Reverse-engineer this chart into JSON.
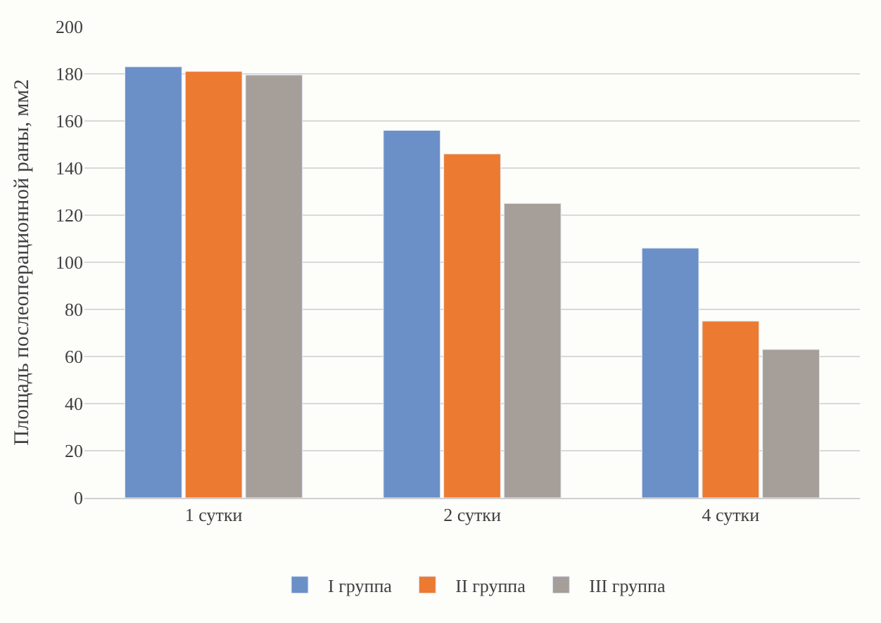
{
  "chart_data": {
    "type": "bar",
    "ylabel": "Площадь послеоперационной раны, мм2",
    "categories": [
      "1 сутки",
      "2 сутки",
      "4 сутки"
    ],
    "series": [
      {
        "name": "I группа",
        "color": "#6b8fc7",
        "values": [
          183,
          156,
          106
        ]
      },
      {
        "name": "II группа",
        "color": "#ec7a31",
        "values": [
          181,
          146,
          75
        ]
      },
      {
        "name": "III группа",
        "color": "#a59e99",
        "values": [
          179.5,
          125,
          63
        ]
      }
    ],
    "ylim": [
      0,
      200
    ],
    "yticks": [
      0,
      20,
      40,
      60,
      80,
      100,
      120,
      140,
      160,
      180,
      200
    ],
    "grid": "y",
    "legend": "bottom"
  }
}
